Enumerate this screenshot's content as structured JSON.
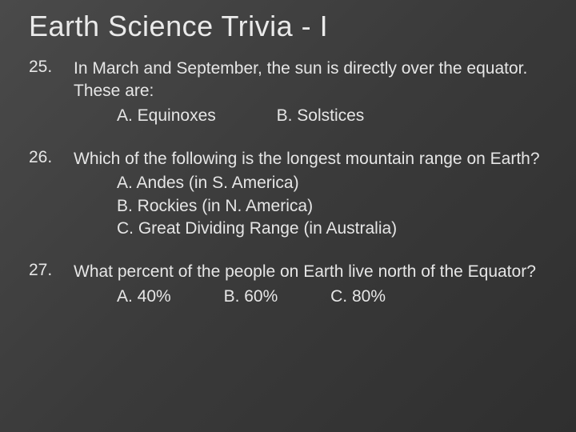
{
  "title": "Earth Science Trivia - I",
  "questions": [
    {
      "number": "25.",
      "stem": "In March and September, the sun is directly over the equator.  These are:",
      "choice_layout": "inline",
      "choices": [
        "A. Equinoxes",
        "B. Solstices"
      ]
    },
    {
      "number": "26.",
      "stem": "Which of the following is the longest mountain range on Earth?",
      "choice_layout": "stack",
      "choices": [
        "A. Andes (in S. America)",
        "B. Rockies (in N. America)",
        "C. Great Dividing Range (in Australia)"
      ]
    },
    {
      "number": "27.",
      "stem": "What percent of the people on Earth live north  of the Equator?",
      "choice_layout": "three",
      "choices": [
        "A. 40%",
        "B. 60%",
        "C. 80%"
      ]
    }
  ],
  "colors": {
    "background_start": "#4a4a4a",
    "background_end": "#2f2f2f",
    "text": "#e8e8e8"
  },
  "typography": {
    "title_fontsize": 36,
    "body_fontsize": 21,
    "font_family": "Arial"
  }
}
